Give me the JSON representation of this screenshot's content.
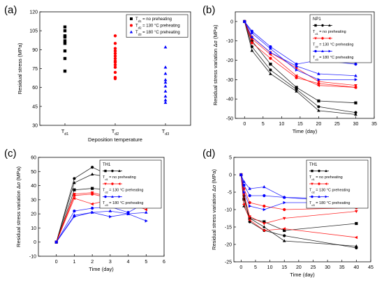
{
  "panel_labels": [
    "(a)",
    "(b)",
    "(c)",
    "(d)"
  ],
  "chart_data": [
    {
      "type": "scatter",
      "panel": "(a)",
      "xlabel": "Deposition temperature",
      "ylabel": "Residual stress (MPa)",
      "ylim": [
        30,
        120
      ],
      "yticks": [
        30,
        45,
        60,
        75,
        90,
        105,
        120
      ],
      "xticks": [
        {
          "base": "T",
          "sub": "d1"
        },
        {
          "base": "T",
          "sub": "d2"
        },
        {
          "base": "T",
          "sub": "d3"
        }
      ],
      "legend": {
        "position": "top-right",
        "entries": [
          {
            "pre": "T",
            "sub": "d1",
            "post": " = no preheating",
            "color": "#000000",
            "marker": "square"
          },
          {
            "pre": "T",
            "sub": "d2",
            "post": " = 130 °C preheating",
            "color": "#ff0000",
            "marker": "circle"
          },
          {
            "pre": "T",
            "sub": "d3",
            "post": " = 180 °C preheating",
            "color": "#0000ff",
            "marker": "triangle"
          }
        ]
      },
      "series": [
        {
          "x": 1,
          "color": "#000000",
          "marker": "square",
          "values": [
            108,
            105,
            101,
            100,
            97,
            95,
            89,
            83,
            73
          ]
        },
        {
          "x": 2,
          "color": "#ff0000",
          "marker": "circle",
          "values": [
            101,
            95,
            91,
            89,
            87,
            85,
            83,
            81,
            80,
            78,
            76,
            72,
            68,
            67
          ]
        },
        {
          "x": 3,
          "color": "#0000ff",
          "marker": "triangle",
          "values": [
            92,
            76,
            71,
            66,
            64,
            61,
            57,
            53,
            50,
            48
          ]
        }
      ]
    },
    {
      "type": "line",
      "panel": "(b)",
      "xlabel": "Time (day)",
      "ylabel": "Residual stress variation Δσ (MPa)",
      "xlim": [
        -2.5,
        35
      ],
      "ylim": [
        -50,
        5
      ],
      "xticks": [
        0,
        5,
        10,
        15,
        20,
        25,
        30,
        35
      ],
      "yticks": [
        -50,
        -40,
        -30,
        -20,
        -10,
        0
      ],
      "legend": {
        "title": "NP1",
        "position": "top-right",
        "entries": [
          {
            "pre": "T",
            "sub": "d1",
            "post": " = no preheating",
            "color": "#000000"
          },
          {
            "pre": "T",
            "sub": "d2",
            "post": " = 130 °C preheating",
            "color": "#ff0000"
          },
          {
            "pre": "T",
            "sub": "d3",
            "post": " = 180 °C preheating",
            "color": "#0000ff"
          }
        ]
      },
      "series": [
        {
          "color": "#000000",
          "marker": "square",
          "x": [
            0,
            2,
            7,
            14,
            20,
            30
          ],
          "y": [
            0,
            -10,
            -22,
            -34,
            -41,
            -42
          ]
        },
        {
          "color": "#000000",
          "marker": "circle",
          "x": [
            0,
            2,
            7,
            14,
            20,
            30
          ],
          "y": [
            0,
            -13,
            -25,
            -35,
            -44,
            -47
          ]
        },
        {
          "color": "#000000",
          "marker": "triangle",
          "x": [
            0,
            2,
            7,
            14,
            20,
            30
          ],
          "y": [
            0,
            -15,
            -27,
            -36,
            -46,
            -48
          ]
        },
        {
          "color": "#ff0000",
          "marker": "left",
          "x": [
            0,
            2,
            7,
            14,
            20,
            30
          ],
          "y": [
            0,
            -9,
            -17,
            -28,
            -33,
            -34
          ]
        },
        {
          "color": "#ff0000",
          "marker": "down",
          "x": [
            0,
            2,
            7,
            14,
            20,
            30
          ],
          "y": [
            0,
            -8,
            -16,
            -24,
            -31,
            -33
          ]
        },
        {
          "color": "#ff0000",
          "marker": "circle",
          "x": [
            0,
            2,
            7,
            14,
            20,
            30
          ],
          "y": [
            0,
            -11,
            -19,
            -29,
            -32,
            -34
          ]
        },
        {
          "color": "#0000ff",
          "marker": "circle",
          "x": [
            0,
            2,
            7,
            14,
            20,
            30
          ],
          "y": [
            0,
            -5,
            -13,
            -22,
            -20,
            -22
          ]
        },
        {
          "color": "#0000ff",
          "marker": "triangle",
          "x": [
            0,
            2,
            7,
            14,
            20,
            30
          ],
          "y": [
            0,
            -8,
            -16,
            -23,
            -27,
            -28
          ]
        },
        {
          "color": "#0000ff",
          "marker": "right",
          "x": [
            0,
            2,
            7,
            14,
            20,
            30
          ],
          "y": [
            0,
            -6,
            -14,
            -25,
            -30,
            -30
          ]
        }
      ]
    },
    {
      "type": "line",
      "panel": "(c)",
      "xlabel": "Time (day)",
      "ylabel": "Residual stress variation Δσ (MPa)",
      "xlim": [
        -1,
        6
      ],
      "ylim": [
        -10,
        60
      ],
      "xticks": [
        0,
        1,
        2,
        3,
        4,
        5,
        6
      ],
      "yticks": [
        -10,
        0,
        10,
        20,
        30,
        40,
        50,
        60
      ],
      "legend": {
        "title": "TH1",
        "position": "top-right",
        "entries": [
          {
            "pre": "T",
            "sub": "d1",
            "post": " = no preheating",
            "color": "#000000"
          },
          {
            "pre": "T",
            "sub": "d2",
            "post": " = 130 °C preheating",
            "color": "#ff0000"
          },
          {
            "pre": "T",
            "sub": "d3",
            "post": " = 180 °C preheating",
            "color": "#0000ff"
          }
        ]
      },
      "series": [
        {
          "color": "#000000",
          "marker": "circle",
          "x": [
            0,
            1,
            2,
            3,
            4,
            5
          ],
          "y": [
            0,
            45,
            53,
            47,
            38,
            36
          ]
        },
        {
          "color": "#000000",
          "marker": "triangle",
          "x": [
            0,
            1,
            2,
            3,
            4,
            5
          ],
          "y": [
            0,
            42,
            48,
            46,
            37,
            38
          ]
        },
        {
          "color": "#000000",
          "marker": "square",
          "x": [
            0,
            1,
            2,
            3,
            4,
            5
          ],
          "y": [
            0,
            37,
            38,
            37,
            36,
            28
          ]
        },
        {
          "color": "#ff0000",
          "marker": "down",
          "x": [
            0,
            1,
            2,
            3,
            4,
            5
          ],
          "y": [
            0,
            34,
            35,
            32,
            30,
            28
          ]
        },
        {
          "color": "#ff0000",
          "marker": "circle",
          "x": [
            0,
            1,
            2,
            3,
            4,
            5
          ],
          "y": [
            0,
            33,
            34,
            31,
            31,
            28
          ]
        },
        {
          "color": "#ff0000",
          "marker": "left",
          "x": [
            0,
            1,
            2,
            3,
            4,
            5
          ],
          "y": [
            0,
            31,
            27,
            30,
            28,
            23
          ]
        },
        {
          "color": "#0000ff",
          "marker": "circle",
          "x": [
            0,
            1,
            2,
            3,
            4,
            5
          ],
          "y": [
            0,
            22,
            24,
            25,
            21,
            28
          ]
        },
        {
          "color": "#0000ff",
          "marker": "triangle",
          "x": [
            0,
            1,
            2,
            3,
            4,
            5
          ],
          "y": [
            0,
            19,
            21,
            22,
            20,
            21
          ]
        },
        {
          "color": "#0000ff",
          "marker": "right",
          "x": [
            0,
            1,
            2,
            3,
            4,
            5
          ],
          "y": [
            0,
            18,
            21,
            18,
            20,
            15
          ]
        }
      ]
    },
    {
      "type": "line",
      "panel": "(d)",
      "xlabel": "Time (day)",
      "ylabel": "Residual stress variation Δσ (MPa)",
      "xlim": [
        -2.5,
        45
      ],
      "ylim": [
        -25,
        5
      ],
      "xticks": [
        0,
        5,
        10,
        15,
        20,
        25,
        30,
        35,
        40,
        45
      ],
      "yticks": [
        -25,
        -20,
        -15,
        -10,
        -5,
        0,
        5
      ],
      "legend": {
        "title": "TH1",
        "position": "top-right",
        "entries": [
          {
            "pre": "T",
            "sub": "d1",
            "post": " = no preheating",
            "color": "#000000"
          },
          {
            "pre": "T",
            "sub": "d2",
            "post": " = 130 °C preheating",
            "color": "#ff0000"
          },
          {
            "pre": "T",
            "sub": "d3",
            "post": " = 180 °C preheating",
            "color": "#0000ff"
          }
        ]
      },
      "series": [
        {
          "color": "#000000",
          "marker": "square",
          "x": [
            0,
            1,
            3,
            8,
            15,
            40
          ],
          "y": [
            0,
            -7,
            -12.5,
            -13.5,
            -16,
            -14
          ]
        },
        {
          "color": "#000000",
          "marker": "circle",
          "x": [
            0,
            1,
            3,
            8,
            15,
            40
          ],
          "y": [
            0,
            -6,
            -13.5,
            -16,
            -17.5,
            -21
          ]
        },
        {
          "color": "#000000",
          "marker": "triangle",
          "x": [
            0,
            1,
            3,
            8,
            15,
            40
          ],
          "y": [
            0,
            -9,
            -12.5,
            -15,
            -19,
            -20.5
          ]
        },
        {
          "color": "#ff0000",
          "marker": "down",
          "x": [
            0,
            1,
            3,
            8,
            15,
            40
          ],
          "y": [
            0,
            -5.5,
            -12,
            -14,
            -12.5,
            -10.5
          ]
        },
        {
          "color": "#ff0000",
          "marker": "circle",
          "x": [
            0,
            1,
            3,
            8,
            15,
            40
          ],
          "y": [
            0,
            -4,
            -8,
            -9,
            -10,
            -9.5
          ]
        },
        {
          "color": "#ff0000",
          "marker": "left",
          "x": [
            0,
            1,
            3,
            8,
            15,
            40
          ],
          "y": [
            0,
            -8.5,
            -13,
            -16,
            -15.5,
            -18
          ]
        },
        {
          "color": "#0000ff",
          "marker": "circle",
          "x": [
            0,
            1,
            3,
            8,
            15,
            40
          ],
          "y": [
            0,
            -3,
            -6,
            -6,
            -6.5,
            -7
          ]
        },
        {
          "color": "#0000ff",
          "marker": "triangle",
          "x": [
            0,
            1,
            3,
            8,
            15,
            40
          ],
          "y": [
            0,
            -2,
            -4,
            -3.5,
            -6.5,
            -8
          ]
        },
        {
          "color": "#0000ff",
          "marker": "right",
          "x": [
            0,
            1,
            3,
            8,
            15,
            40
          ],
          "y": [
            0,
            -5,
            -9,
            -10,
            -8,
            -8
          ]
        }
      ]
    }
  ]
}
